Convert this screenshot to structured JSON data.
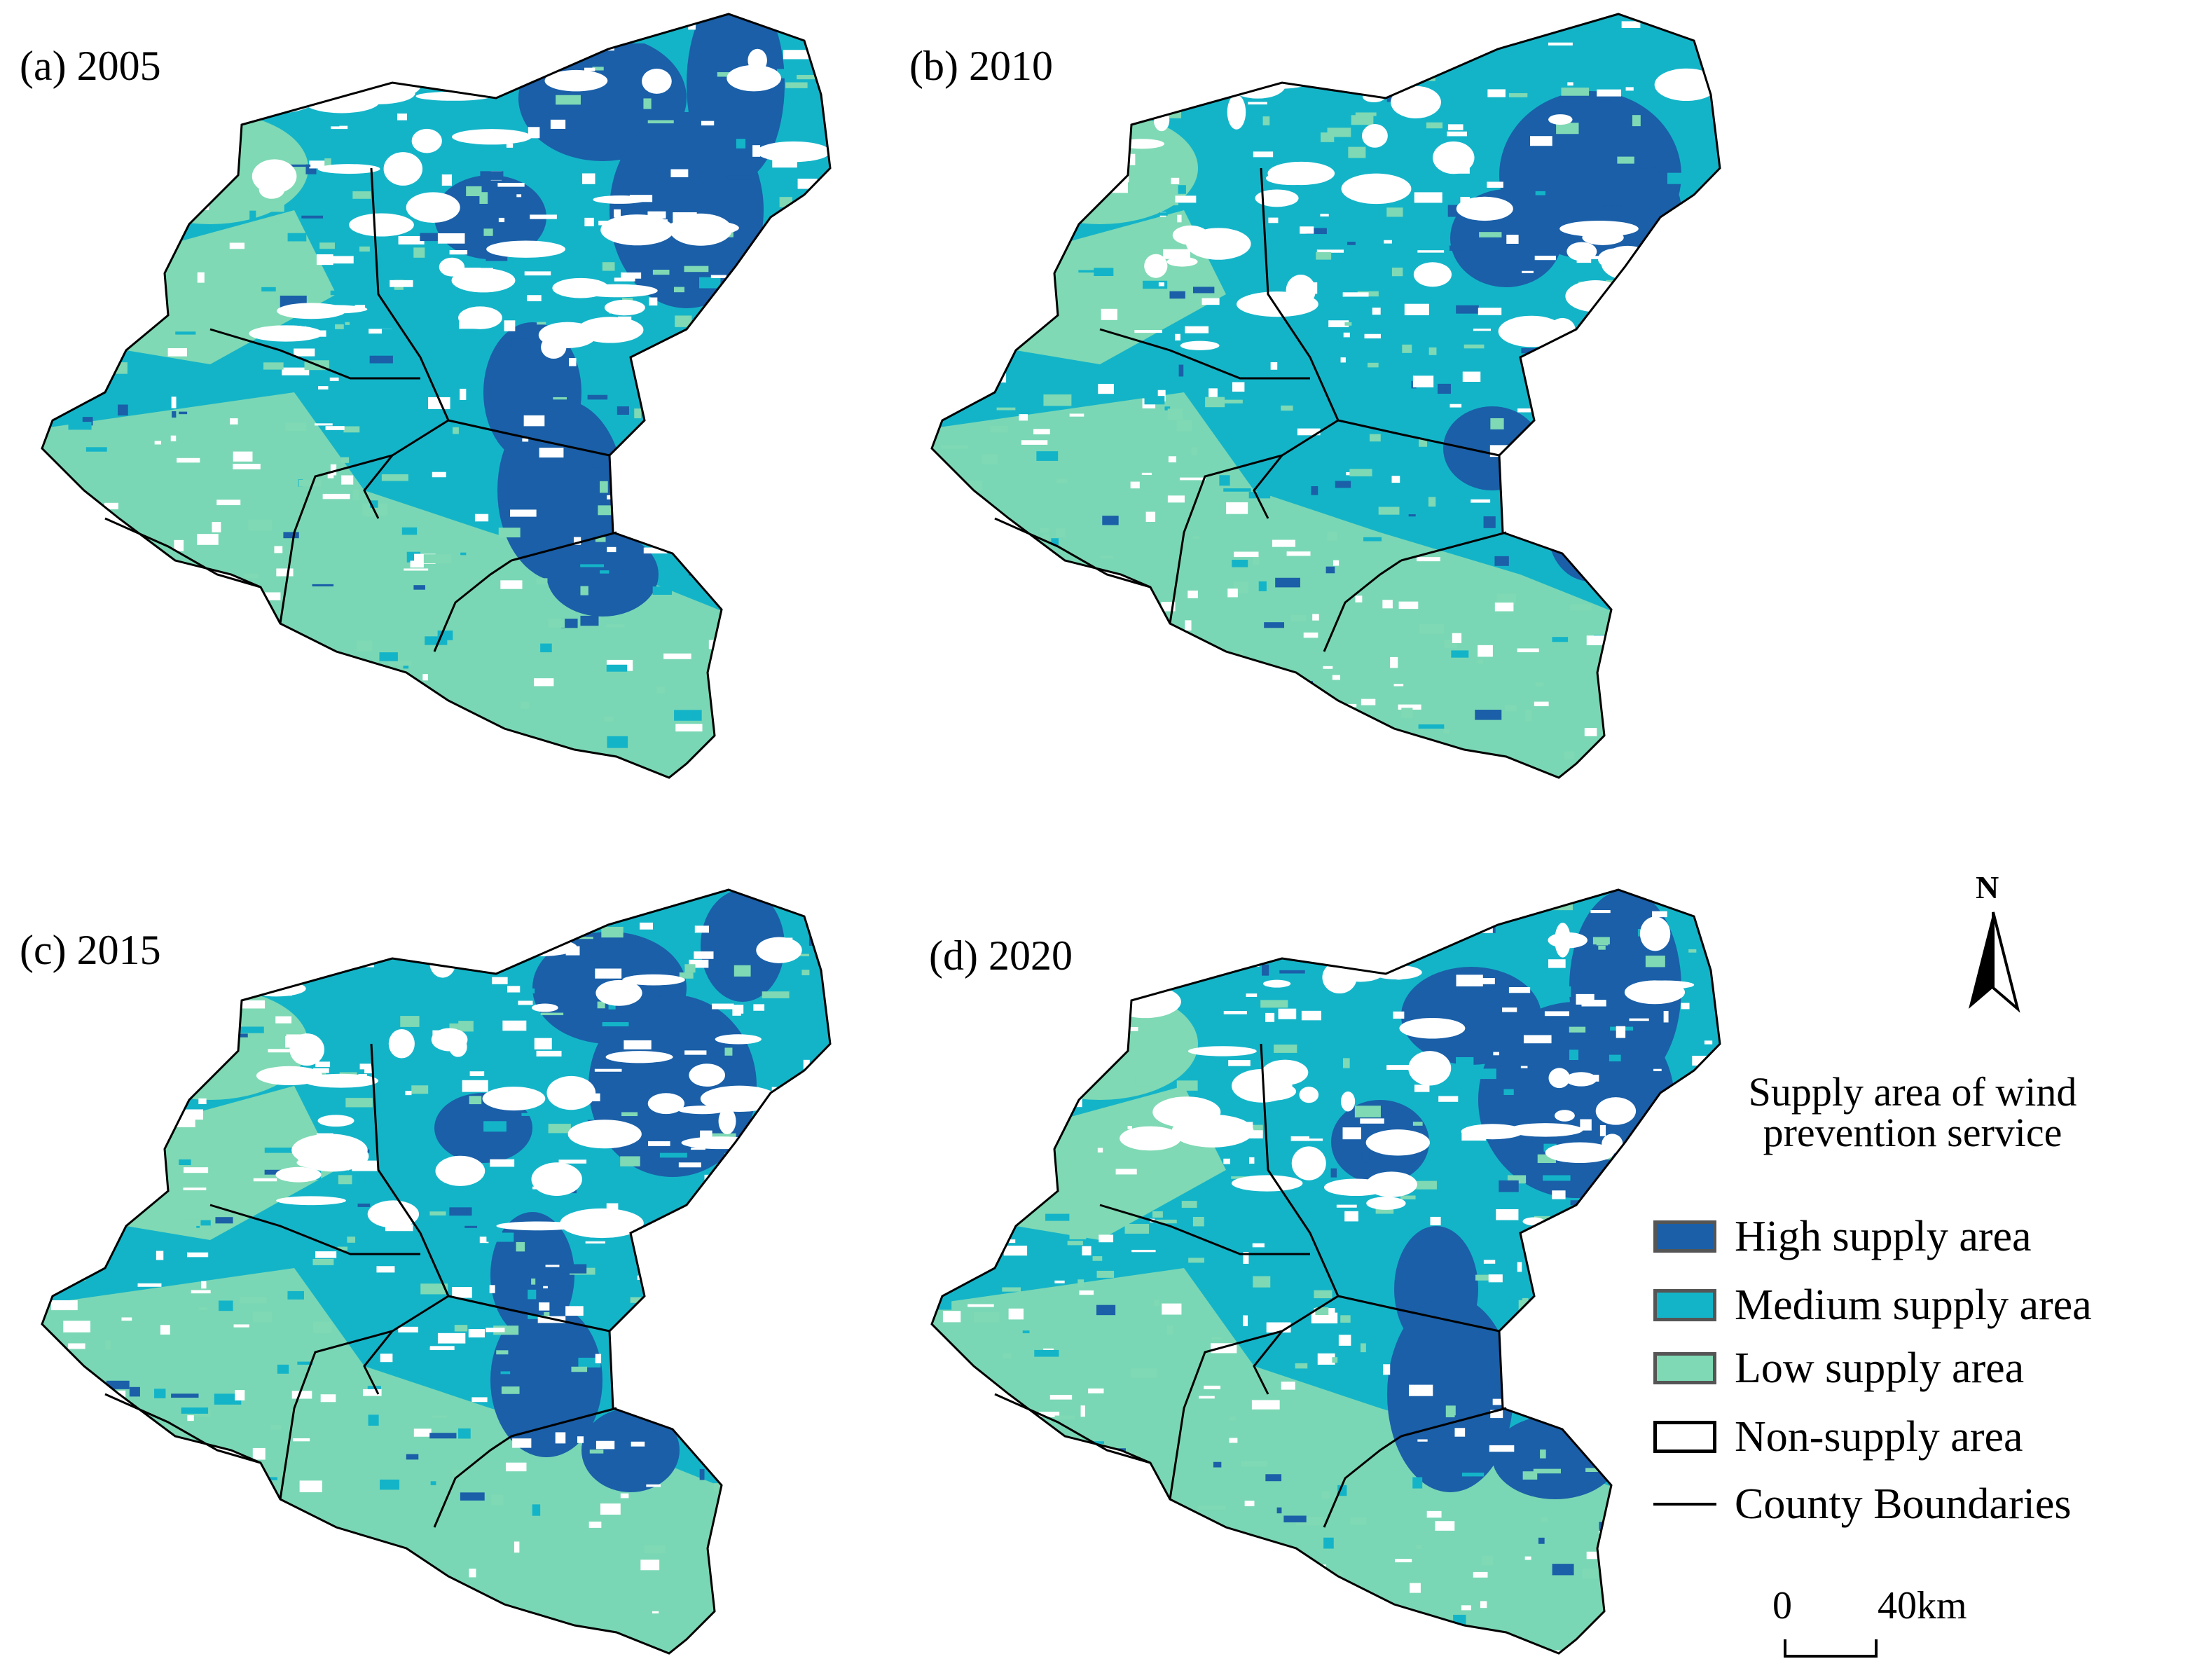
{
  "panels": [
    {
      "label": "(a) 2005"
    },
    {
      "label": "(b) 2010"
    },
    {
      "label": "(c) 2015"
    },
    {
      "label": "(d) 2020"
    }
  ],
  "legend": {
    "title": "Supply area of wind prevention service",
    "title_line1": "Supply area of wind",
    "title_line2": "prevention service",
    "items": [
      {
        "label": "High supply area",
        "color": "#1a5fa8"
      },
      {
        "label": "Medium supply area",
        "color": "#14b4c8"
      },
      {
        "label": "Low supply area",
        "color": "#7fd9b4"
      },
      {
        "label": "Non-supply area",
        "color": "#ffffff"
      },
      {
        "label": "County Boundaries",
        "color": "#000000"
      }
    ]
  },
  "north_arrow": {
    "letter": "N"
  },
  "scale_bar": {
    "start": "0",
    "end": "40km"
  },
  "colors": {
    "high": "#1a5fa8",
    "medium": "#14b4c8",
    "low": "#7fd9b4",
    "none": "#ffffff",
    "boundary": "#000000"
  }
}
